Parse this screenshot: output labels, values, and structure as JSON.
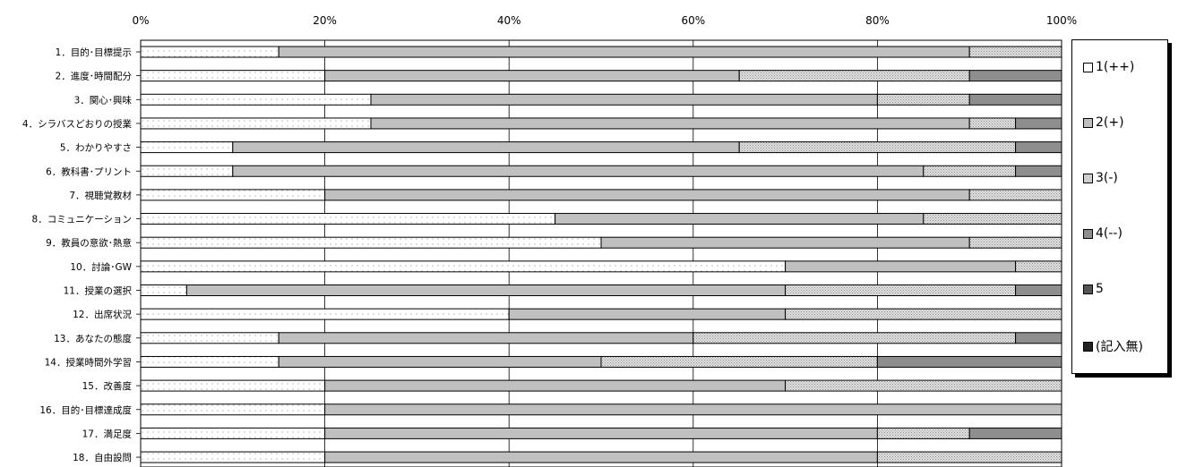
{
  "chart_data": {
    "type": "bar",
    "stacked": true,
    "orientation": "horizontal",
    "x_tick_labels": [
      "0%",
      "20%",
      "40%",
      "60%",
      "80%",
      "100%"
    ],
    "xlim": [
      0,
      100
    ],
    "grid": true,
    "legend_position": "right",
    "categories": [
      "1．目的･目標提示",
      "2．進度･時間配分",
      "3．関心･興味",
      "4．シラバスどおりの授業",
      "5．わかりやすさ",
      "6．教科書･プリント",
      "7．視聴覚教材",
      "8．コミュニケーション",
      "9．教員の意欲･熱意",
      "10．討論･GW",
      "11．授業の選択",
      "12．出席状況",
      "13．あなたの態度",
      "14．授業時間外学習",
      "15．改善度",
      "16．目的･目標達成度",
      "17．満足度",
      "18．自由設問"
    ],
    "series": [
      {
        "name": "1(++)",
        "color": "#ffffff",
        "values": [
          15,
          20,
          25,
          25,
          10,
          10,
          20,
          45,
          50,
          70,
          5,
          40,
          15,
          15,
          20,
          20,
          20,
          20
        ]
      },
      {
        "name": "2(+)",
        "color": "#c0c0c0",
        "values": [
          75,
          45,
          55,
          65,
          55,
          75,
          70,
          40,
          40,
          25,
          65,
          30,
          45,
          35,
          50,
          80,
          60,
          60
        ]
      },
      {
        "name": "3(-)",
        "color": "#d0d0d0",
        "values": [
          10,
          25,
          10,
          5,
          30,
          10,
          10,
          15,
          10,
          5,
          25,
          30,
          35,
          30,
          30,
          0,
          10,
          20
        ]
      },
      {
        "name": "4(--)",
        "color": "#a0a0a0",
        "values": [
          0,
          10,
          10,
          5,
          5,
          5,
          0,
          0,
          0,
          0,
          5,
          0,
          5,
          20,
          0,
          0,
          10,
          0
        ]
      },
      {
        "name": "5",
        "color": "#404040",
        "values": [
          0,
          0,
          0,
          0,
          0,
          0,
          0,
          0,
          0,
          0,
          0,
          0,
          0,
          0,
          0,
          0,
          0,
          0
        ]
      },
      {
        "name": "(記入無)",
        "color": "#202020",
        "values": [
          0,
          0,
          0,
          0,
          0,
          0,
          0,
          0,
          0,
          0,
          0,
          0,
          0,
          0,
          0,
          0,
          0,
          0
        ]
      }
    ]
  }
}
